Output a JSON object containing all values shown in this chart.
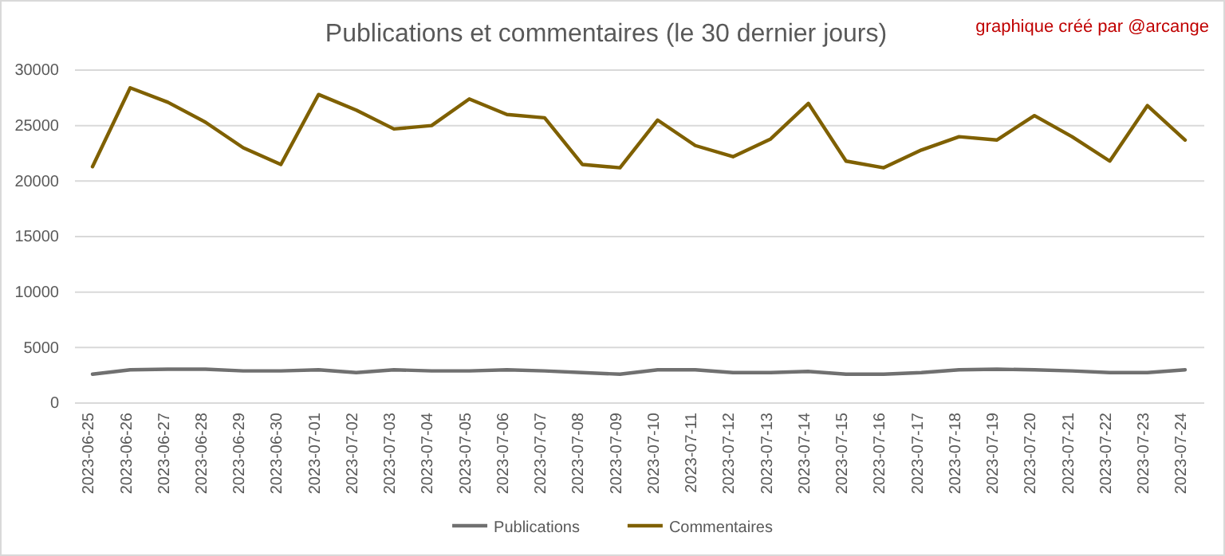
{
  "chart_data": {
    "type": "line",
    "title": "Publications et commentaires (le 30 dernier jours)",
    "annotations": [
      "graphique créé par @arcange"
    ],
    "categories": [
      "2023-06-25",
      "2023-06-26",
      "2023-06-27",
      "2023-06-28",
      "2023-06-29",
      "2023-06-30",
      "2023-07-01",
      "2023-07-02",
      "2023-07-03",
      "2023-07-04",
      "2023-07-05",
      "2023-07-06",
      "2023-07-07",
      "2023-07-08",
      "2023-07-09",
      "2023-07-10",
      "2023-07-11",
      "2023-07-12",
      "2023-07-13",
      "2023-07-14",
      "2023-07-15",
      "2023-07-16",
      "2023-07-17",
      "2023-07-18",
      "2023-07-19",
      "2023-07-20",
      "2023-07-21",
      "2023-07-22",
      "2023-07-23",
      "2023-07-24"
    ],
    "series": [
      {
        "name": "Publications",
        "color": "#707070",
        "values": [
          2600,
          3000,
          3050,
          3050,
          2900,
          2900,
          3000,
          2750,
          3000,
          2900,
          2900,
          3000,
          2900,
          2750,
          2600,
          3000,
          3000,
          2750,
          2750,
          2850,
          2600,
          2600,
          2750,
          3000,
          3050,
          3000,
          2900,
          2750,
          2750,
          3000
        ]
      },
      {
        "name": "Commentaires",
        "color": "#7f6000",
        "values": [
          21300,
          28400,
          27100,
          25300,
          23000,
          21500,
          27800,
          26400,
          24700,
          25000,
          27400,
          26000,
          25700,
          21500,
          21200,
          25500,
          23200,
          22200,
          23800,
          27000,
          21800,
          21200,
          22800,
          24000,
          23700,
          25900,
          24000,
          21800,
          26800,
          23700
        ]
      }
    ],
    "ylim": [
      0,
      30000
    ],
    "yticks": [
      0,
      5000,
      10000,
      15000,
      20000,
      25000,
      30000
    ],
    "grid": "y",
    "legend": "bottom",
    "marker": "none",
    "line_style": "solid"
  }
}
